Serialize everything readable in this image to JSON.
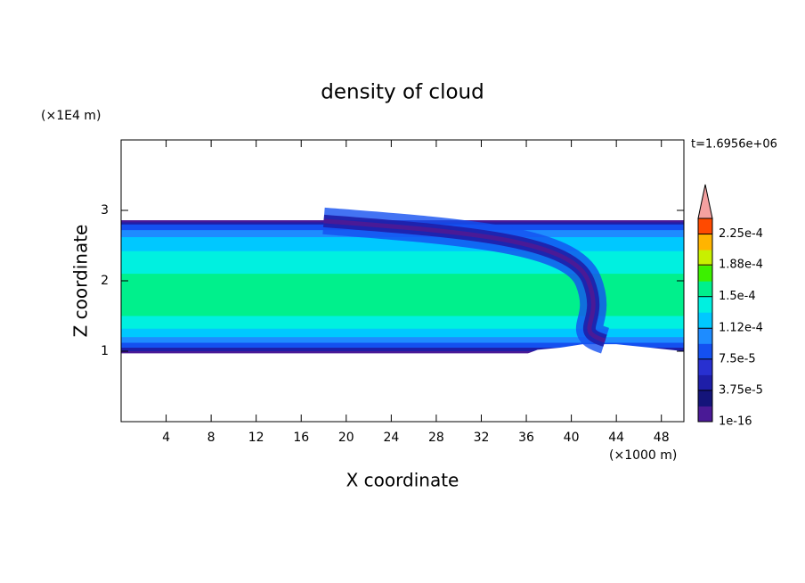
{
  "chart_data": {
    "type": "contour",
    "title": "density of cloud",
    "x_label": "X coordinate",
    "y_label": "Z coordinate",
    "x_unit": "(×1000 m)",
    "y_unit": "(×1E4 m)",
    "annotation": "t=1.6956e+06",
    "xlim": [
      0,
      50
    ],
    "xticks": [
      4,
      8,
      12,
      16,
      20,
      24,
      28,
      32,
      36,
      40,
      44,
      48
    ],
    "ylim": [
      0,
      4
    ],
    "yticks": [
      1,
      2,
      3
    ],
    "colorbar": {
      "lim": [
        0,
        0.00024375
      ],
      "ticks": [
        1e-16,
        {
          "value": 3.75e-05,
          "label": "3.75e-5"
        },
        {
          "value": 7.5e-05,
          "label": "7.5e-5"
        },
        {
          "value": 0.000112,
          "label": "1.12e-4"
        },
        {
          "value": 0.00015,
          "label": "1.5e-4"
        },
        {
          "value": 0.000188,
          "label": "1.88e-4"
        },
        {
          "value": 0.000225,
          "label": "2.25e-4"
        }
      ],
      "colors": [
        "#4a1a96",
        "#14147a",
        "#1e1ea8",
        "#2830d0",
        "#1450f0",
        "#1e8cff",
        "#00c8ff",
        "#00f0e0",
        "#00f08c",
        "#3cf000",
        "#c8f000",
        "#ffb400",
        "#ff4a00"
      ],
      "extend_color": "#f4a0a0"
    }
  }
}
